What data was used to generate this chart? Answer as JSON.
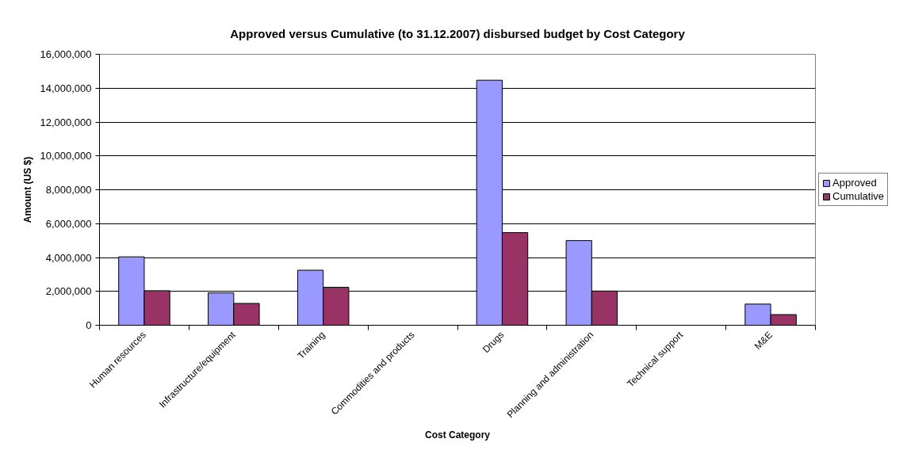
{
  "chart_data": {
    "type": "bar",
    "title": "Approved versus Cumulative (to 31.12.2007) disbursed budget by Cost Category",
    "xlabel": "Cost Category",
    "ylabel": "Amount (US $)",
    "categories": [
      "Human resources",
      "Infrastructure/equipment",
      "Training",
      "Commodities and products",
      "Drugs",
      "Planning and administration",
      "Technical support",
      "M&E"
    ],
    "series": [
      {
        "name": "Approved",
        "color": "#9999ff",
        "values": [
          4040000,
          1910000,
          3250000,
          null,
          14470000,
          5000000,
          null,
          1250000
        ]
      },
      {
        "name": "Cumulative",
        "color": "#993366",
        "values": [
          2040000,
          1290000,
          2240000,
          null,
          5470000,
          2020000,
          null,
          630000
        ]
      }
    ],
    "ylim": [
      0,
      16000000
    ],
    "yticks": [
      {
        "value": 0,
        "label": "0"
      },
      {
        "value": 2000000,
        "label": "2,000,000"
      },
      {
        "value": 4000000,
        "label": "4,000,000"
      },
      {
        "value": 6000000,
        "label": "6,000,000"
      },
      {
        "value": 8000000,
        "label": "8,000,000"
      },
      {
        "value": 10000000,
        "label": "10,000,000"
      },
      {
        "value": 12000000,
        "label": "12,000,000"
      },
      {
        "value": 14000000,
        "label": "14,000,000"
      },
      {
        "value": 16000000,
        "label": "16,000,000"
      }
    ],
    "grid": "y",
    "legend": "right"
  }
}
